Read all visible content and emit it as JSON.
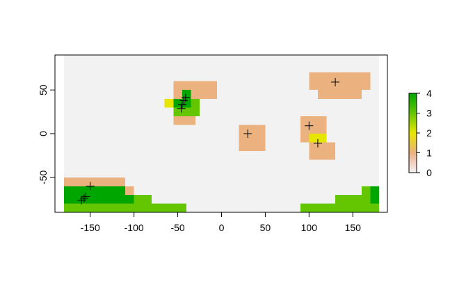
{
  "chart_data": {
    "type": "heatmap",
    "xlim": [
      -180,
      180
    ],
    "ylim": [
      -90,
      90
    ],
    "x_ticks": [
      -150,
      -100,
      -50,
      0,
      50,
      100,
      150
    ],
    "x_tick_labels": [
      "-150",
      "-100",
      "-50",
      "0",
      "50",
      "100",
      "150"
    ],
    "y_ticks": [
      -50,
      0,
      50
    ],
    "y_tick_labels": [
      "-50",
      "0",
      "50"
    ],
    "background_value_color": "#f2f2f2",
    "color_scale": {
      "min": 0,
      "max": 4,
      "ticks": [
        0,
        1,
        2,
        3,
        4
      ],
      "tick_labels": [
        "0",
        "1",
        "2",
        "3",
        "4"
      ],
      "colors": [
        {
          "value": 0,
          "color": "#f2f2f2"
        },
        {
          "value": 0.5,
          "color": "#f1cfc1"
        },
        {
          "value": 1,
          "color": "#ebb17e"
        },
        {
          "value": 2,
          "color": "#e6e600"
        },
        {
          "value": 3,
          "color": "#63c600"
        },
        {
          "value": 4,
          "color": "#00a600"
        }
      ]
    },
    "cells": [
      {
        "x": [
          -55,
          -5
        ],
        "y": [
          50,
          60
        ],
        "value": 1
      },
      {
        "x": [
          -55,
          -25
        ],
        "y": [
          40,
          50
        ],
        "value": 1
      },
      {
        "x": [
          -55,
          -25
        ],
        "y": [
          30,
          40
        ],
        "value": 3
      },
      {
        "x": [
          -65,
          -55
        ],
        "y": [
          30,
          40
        ],
        "value": 2
      },
      {
        "x": [
          -55,
          -25
        ],
        "y": [
          20,
          30
        ],
        "value": 3
      },
      {
        "x": [
          -55,
          -30
        ],
        "y": [
          10,
          20
        ],
        "value": 1
      },
      {
        "x": [
          -25,
          -5
        ],
        "y": [
          40,
          50
        ],
        "value": 1
      },
      {
        "x": [
          -45,
          -35
        ],
        "y": [
          30,
          50
        ],
        "value": 4
      },
      {
        "x": [
          -55,
          -45
        ],
        "y": [
          30,
          40
        ],
        "value": 4
      },
      {
        "x": [
          -45,
          -35
        ],
        "y": [
          20,
          30
        ],
        "value": 3
      },
      {
        "x": [
          -35,
          -25
        ],
        "y": [
          30,
          40
        ],
        "value": 3
      },
      {
        "x": [
          100,
          170
        ],
        "y": [
          50,
          70
        ],
        "value": 1
      },
      {
        "x": [
          110,
          160
        ],
        "y": [
          40,
          50
        ],
        "value": 1
      },
      {
        "x": [
          20,
          50
        ],
        "y": [
          -20,
          10
        ],
        "value": 1
      },
      {
        "x": [
          90,
          120
        ],
        "y": [
          -10,
          20
        ],
        "value": 1
      },
      {
        "x": [
          100,
          130
        ],
        "y": [
          -30,
          -10
        ],
        "value": 1
      },
      {
        "x": [
          100,
          120
        ],
        "y": [
          -10,
          0
        ],
        "value": 2
      },
      {
        "x": [
          -180,
          -110
        ],
        "y": [
          -60,
          -50
        ],
        "value": 1
      },
      {
        "x": [
          -180,
          -110
        ],
        "y": [
          -70,
          -60
        ],
        "value": 4
      },
      {
        "x": [
          -110,
          -100
        ],
        "y": [
          -70,
          -60
        ],
        "value": 1
      },
      {
        "x": [
          -180,
          -100
        ],
        "y": [
          -80,
          -70
        ],
        "value": 4
      },
      {
        "x": [
          -100,
          -80
        ],
        "y": [
          -80,
          -70
        ],
        "value": 3
      },
      {
        "x": [
          -180,
          -80
        ],
        "y": [
          -90,
          -80
        ],
        "value": 3
      },
      {
        "x": [
          -80,
          -40
        ],
        "y": [
          -90,
          -80
        ],
        "value": 3
      },
      {
        "x": [
          90,
          180
        ],
        "y": [
          -90,
          -80
        ],
        "value": 3
      },
      {
        "x": [
          130,
          180
        ],
        "y": [
          -80,
          -70
        ],
        "value": 3
      },
      {
        "x": [
          160,
          170
        ],
        "y": [
          -70,
          -60
        ],
        "value": 3
      },
      {
        "x": [
          170,
          180
        ],
        "y": [
          -80,
          -60
        ],
        "value": 4
      }
    ],
    "points": [
      {
        "x": -150,
        "y": -60
      },
      {
        "x": -155,
        "y": -72
      },
      {
        "x": -157,
        "y": -74
      },
      {
        "x": -160,
        "y": -76
      },
      {
        "x": -41,
        "y": 41
      },
      {
        "x": -43,
        "y": 38
      },
      {
        "x": -45,
        "y": 33
      },
      {
        "x": -46,
        "y": 29
      },
      {
        "x": 30,
        "y": 0
      },
      {
        "x": 100,
        "y": 9
      },
      {
        "x": 110,
        "y": -11
      },
      {
        "x": 130,
        "y": 59
      }
    ]
  }
}
